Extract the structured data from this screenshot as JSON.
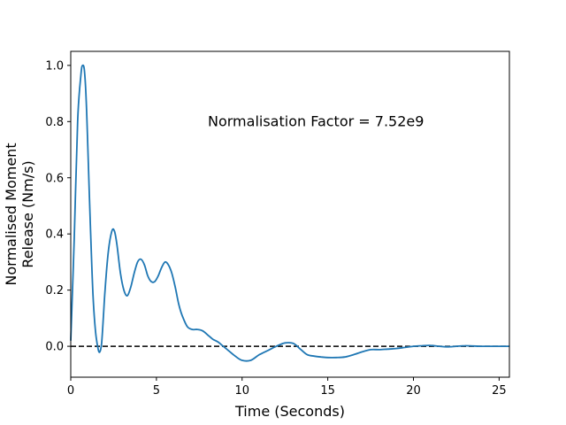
{
  "chart_data": {
    "type": "line",
    "xlabel": "Time (Seconds)",
    "ylabel_lines": [
      "Normalised Moment",
      "Release (Nm/s)"
    ],
    "xlim": [
      0,
      25.6
    ],
    "ylim": [
      -0.11,
      1.05
    ],
    "xticks": [
      0,
      5,
      10,
      15,
      20,
      25
    ],
    "yticks": [
      0.0,
      0.2,
      0.4,
      0.6,
      0.8,
      1.0
    ],
    "xtick_labels": [
      "0",
      "5",
      "10",
      "15",
      "20",
      "25"
    ],
    "ytick_labels": [
      "0.0",
      "0.2",
      "0.4",
      "0.6",
      "0.8",
      "1.0"
    ],
    "annotation": {
      "text": "Normalisation Factor = 7.52e9",
      "x": 8.0,
      "y": 0.8
    },
    "reference_line": {
      "y": 0.0,
      "style": "dashed",
      "color": "#000000"
    },
    "grid": false,
    "series": [
      {
        "color": "#1f77b4",
        "x": [
          0,
          0.2,
          0.4,
          0.6,
          0.7,
          0.8,
          0.9,
          1.0,
          1.15,
          1.3,
          1.45,
          1.6,
          1.7,
          1.8,
          1.9,
          2.0,
          2.2,
          2.4,
          2.55,
          2.7,
          2.9,
          3.1,
          3.3,
          3.5,
          3.7,
          3.9,
          4.1,
          4.3,
          4.5,
          4.7,
          4.9,
          5.1,
          5.3,
          5.5,
          5.7,
          5.9,
          6.1,
          6.3,
          6.5,
          6.8,
          7.1,
          7.4,
          7.7,
          8.0,
          8.3,
          8.6,
          8.9,
          9.2,
          9.6,
          10.0,
          10.5,
          11.0,
          11.5,
          12.0,
          12.5,
          13.0,
          13.4,
          13.8,
          14.2,
          14.6,
          15.0,
          15.5,
          16.0,
          16.5,
          17.0,
          17.5,
          18.0,
          18.5,
          19.0,
          19.5,
          20.0,
          20.5,
          21.0,
          21.5,
          22.0,
          22.5,
          23.0,
          23.5,
          24.0,
          24.5,
          25.0,
          25.6
        ],
        "y": [
          0.02,
          0.38,
          0.8,
          0.97,
          1.0,
          0.98,
          0.88,
          0.7,
          0.42,
          0.18,
          0.05,
          -0.01,
          -0.02,
          0.01,
          0.1,
          0.2,
          0.34,
          0.41,
          0.41,
          0.36,
          0.26,
          0.2,
          0.18,
          0.21,
          0.26,
          0.3,
          0.31,
          0.29,
          0.25,
          0.23,
          0.23,
          0.25,
          0.28,
          0.3,
          0.29,
          0.26,
          0.21,
          0.15,
          0.11,
          0.07,
          0.06,
          0.06,
          0.055,
          0.04,
          0.025,
          0.015,
          0.0,
          -0.015,
          -0.035,
          -0.05,
          -0.05,
          -0.03,
          -0.015,
          0.0,
          0.012,
          0.01,
          -0.01,
          -0.03,
          -0.035,
          -0.038,
          -0.04,
          -0.04,
          -0.038,
          -0.03,
          -0.02,
          -0.012,
          -0.012,
          -0.01,
          -0.008,
          -0.004,
          0.0,
          0.002,
          0.003,
          0.0,
          -0.002,
          0.0,
          0.002,
          0.001,
          0.0,
          0.0,
          0.0,
          0.0
        ]
      }
    ]
  }
}
